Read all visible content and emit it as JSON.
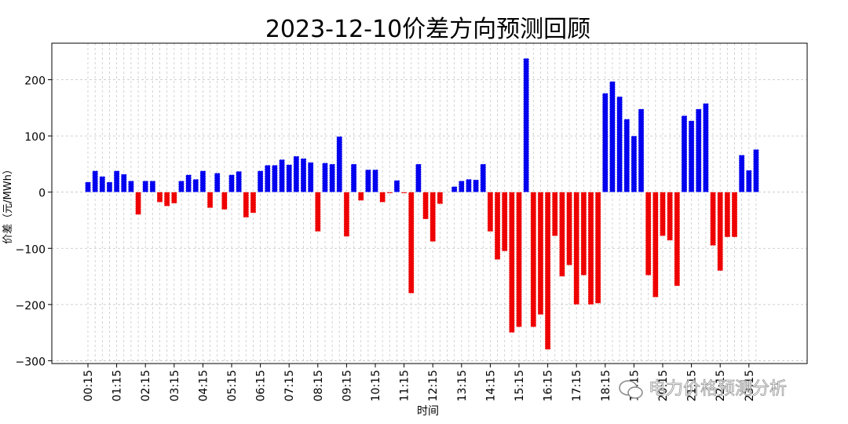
{
  "chart_data": {
    "type": "bar",
    "title": "2023-12-10价差方向预测回顾",
    "xlabel": "时间",
    "ylabel": "价差（元/MWh）",
    "ylim": [
      -305,
      265
    ],
    "yticks": [
      200,
      100,
      0,
      -100,
      -200,
      -300
    ],
    "grid": true,
    "x_tick_labels": [
      "00:15",
      "01:15",
      "02:15",
      "03:15",
      "04:15",
      "05:15",
      "06:15",
      "07:15",
      "08:15",
      "09:15",
      "10:15",
      "11:15",
      "12:15",
      "13:15",
      "14:15",
      "15:15",
      "16:15",
      "17:15",
      "18:15",
      "19:15",
      "20:15",
      "21:15",
      "22:15",
      "23:15"
    ],
    "positive_color": "#0000ee",
    "negative_color": "#ee0000",
    "values": [
      18,
      38,
      28,
      18,
      38,
      32,
      20,
      -40,
      20,
      20,
      -18,
      -25,
      -20,
      20,
      31,
      23,
      38,
      -28,
      34,
      -31,
      31,
      37,
      -45,
      -37,
      38,
      48,
      48,
      58,
      49,
      64,
      60,
      53,
      -70,
      52,
      50,
      99,
      -79,
      50,
      -15,
      40,
      40,
      -18,
      -2,
      21,
      -2,
      -180,
      50,
      -48,
      -88,
      -21,
      0,
      10,
      20,
      23,
      22,
      50,
      -70,
      -120,
      -105,
      -250,
      -240,
      238,
      -240,
      -218,
      -280,
      -78,
      -150,
      -130,
      -200,
      -148,
      -200,
      -198,
      176,
      197,
      170,
      130,
      100,
      148,
      -148,
      -187,
      -78,
      -86,
      -167,
      136,
      127,
      148,
      158,
      -95,
      -140,
      -80,
      -80,
      66,
      39,
      76
    ]
  },
  "watermark": "电力价格预测分析"
}
